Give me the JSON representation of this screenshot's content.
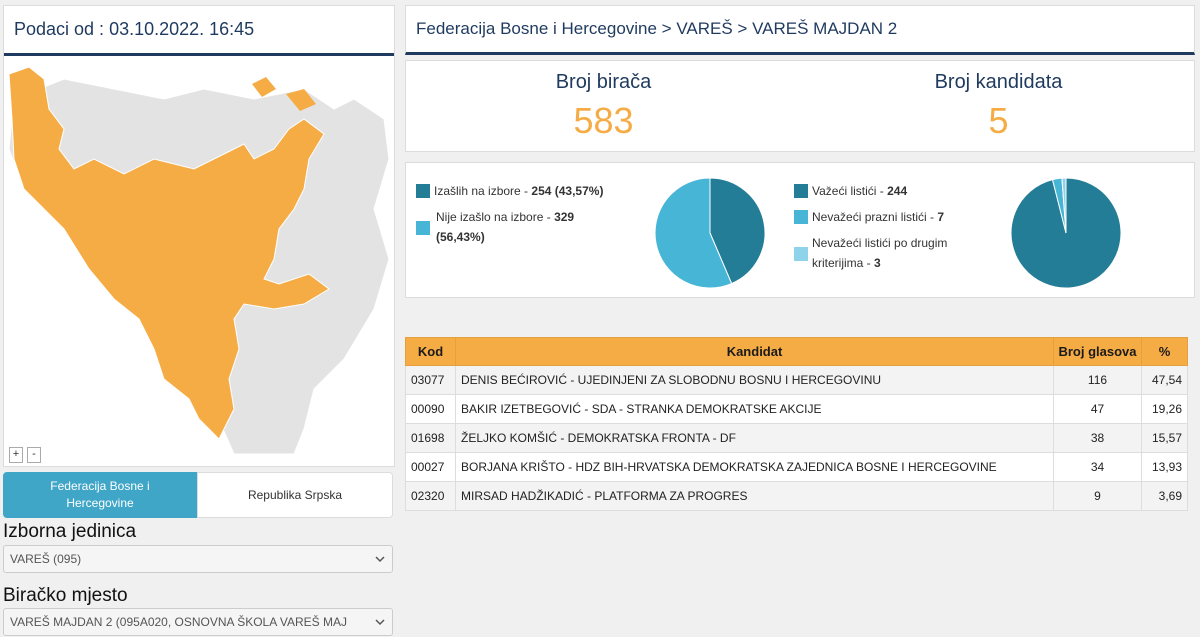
{
  "left": {
    "date_header": "Podaci od : 03.10.2022. 16:45",
    "zoom_in": "+",
    "zoom_out": "-",
    "tabs": [
      {
        "label": "Federacija Bosne i Hercegovine",
        "active": true
      },
      {
        "label": "Republika Srpska",
        "active": false
      }
    ],
    "izborna_jedinica": {
      "label": "Izborna jedinica",
      "value": "VAREŠ (095)"
    },
    "biracko_mjesto": {
      "label": "Biračko mjesto",
      "value": "VAREŠ MAJDAN 2 (095A020, OSNOVNA ŠKOLA VAREŠ MAJ"
    }
  },
  "breadcrumb": "Federacija Bosne i Hercegovine > VAREŠ > VAREŠ MAJDAN 2",
  "stats": {
    "voters_label": "Broj birača",
    "voters_value": "583",
    "candidates_label": "Broj kandidata",
    "candidates_value": "5"
  },
  "turnout": {
    "turned_out_label": "Izašlih na izbore - ",
    "turned_out_value": "254 (43,57%)",
    "not_turned_out_label": "Nije izašlo na izbore - ",
    "not_turned_out_value_a": "329",
    "not_turned_out_value_b": "(56,43%)",
    "turned_out_fraction": 0.4357
  },
  "ballots": {
    "valid_label": "Važeći listići - ",
    "valid_value": "244",
    "blank_label": "Nevažeći prazni listići - ",
    "blank_value": "7",
    "other_label_a": "Nevažeći listići po drugim",
    "other_label_b": "kriterijima - ",
    "other_value": "3",
    "counts": [
      244,
      7,
      3
    ]
  },
  "colors": {
    "accent_orange": "#f6ac45",
    "header_navy": "#1f3a5f",
    "pie_dark": "#237d96",
    "pie_light": "#47b5d6",
    "pie_lighter": "#8fd3ea",
    "map_highlight": "#f5ac45",
    "map_grey": "#e3e3e3"
  },
  "table": {
    "headers": [
      "Kod",
      "Kandidat",
      "Broj glasova",
      "%"
    ],
    "rows": [
      {
        "kod": "03077",
        "kandidat": "DENIS BEĆIROVIĆ - UJEDINJENI ZA SLOBODNU BOSNU I HERCEGOVINU",
        "glasovi": "116",
        "pct": "47,54"
      },
      {
        "kod": "00090",
        "kandidat": "BAKIR IZETBEGOVIĆ - SDA - STRANKA DEMOKRATSKE AKCIJE",
        "glasovi": "47",
        "pct": "19,26"
      },
      {
        "kod": "01698",
        "kandidat": "ŽELJKO KOMŠIĆ - DEMOKRATSKA FRONTA - DF",
        "glasovi": "38",
        "pct": "15,57"
      },
      {
        "kod": "00027",
        "kandidat": "BORJANA KRIŠTO - HDZ BIH-HRVATSKA DEMOKRATSKA ZAJEDNICA BOSNE I HERCEGOVINE",
        "glasovi": "34",
        "pct": "13,93"
      },
      {
        "kod": "02320",
        "kandidat": "MIRSAD HADŽIKADIĆ - PLATFORMA ZA PROGRES",
        "glasovi": "9",
        "pct": "3,69"
      }
    ]
  }
}
